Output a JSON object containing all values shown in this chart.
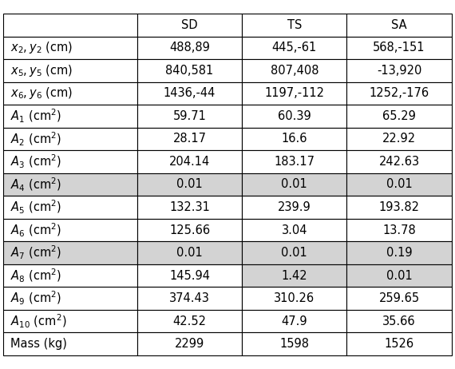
{
  "col_headers": [
    "SD",
    "TS",
    "SA"
  ],
  "row_labels_display": [
    "$x_2,y_2$ (cm)",
    "$x_5,y_5$ (cm)",
    "$x_6,y_6$ (cm)",
    "$A_1$ (cm$^2$)",
    "$A_2$ (cm$^2$)",
    "$A_3$ (cm$^2$)",
    "$A_4$ (cm$^2$)",
    "$A_5$ (cm$^2$)",
    "$A_6$ (cm$^2$)",
    "$A_7$ (cm$^2$)",
    "$A_8$ (cm$^2$)",
    "$A_9$ (cm$^2$)",
    "$A_{10}$ (cm$^2$)",
    "Mass (kg)"
  ],
  "cell_data": [
    [
      "488,89",
      "445,-61",
      "568,-151"
    ],
    [
      "840,581",
      "807,408",
      "-13,920"
    ],
    [
      "1436,-44",
      "1197,-112",
      "1252,-176"
    ],
    [
      "59.71",
      "60.39",
      "65.29"
    ],
    [
      "28.17",
      "16.6",
      "22.92"
    ],
    [
      "204.14",
      "183.17",
      "242.63"
    ],
    [
      "0.01",
      "0.01",
      "0.01"
    ],
    [
      "132.31",
      "239.9",
      "193.82"
    ],
    [
      "125.66",
      "3.04",
      "13.78"
    ],
    [
      "0.01",
      "0.01",
      "0.19"
    ],
    [
      "145.94",
      "1.42",
      "0.01"
    ],
    [
      "374.43",
      "310.26",
      "259.65"
    ],
    [
      "42.52",
      "47.9",
      "35.66"
    ],
    [
      "2299",
      "1598",
      "1526"
    ]
  ],
  "shaded_row_indices": [
    6,
    9,
    10
  ],
  "partial_shaded": {
    "row": 10,
    "cols": [
      2
    ]
  },
  "white_only_cells_in_shaded": {
    "row": 10,
    "cols": [
      0,
      1
    ]
  },
  "shaded_color": "#d3d3d3",
  "white_color": "#ffffff",
  "border_color": "#000000",
  "font_size": 10.5,
  "header_font_size": 10.5
}
